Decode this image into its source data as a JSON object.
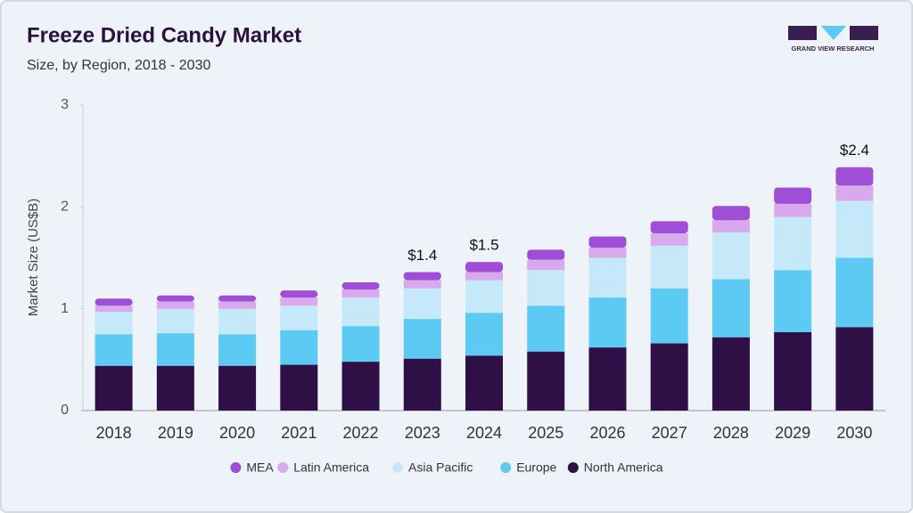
{
  "chart_data": {
    "type": "stacked-bar",
    "title": "Freeze Dried Candy Market",
    "subtitle": "Size, by Region, 2018 - 2030",
    "y_label": "Market Size (US$B)",
    "logo": "GRAND VIEW RESEARCH",
    "categories": [
      "2018",
      "2019",
      "2020",
      "2021",
      "2022",
      "2023",
      "2024",
      "2025",
      "2026",
      "2027",
      "2028",
      "2029",
      "2030"
    ],
    "series": [
      {
        "name": "North America",
        "color": "#2f1046",
        "values": [
          0.44,
          0.44,
          0.44,
          0.45,
          0.48,
          0.51,
          0.54,
          0.58,
          0.62,
          0.66,
          0.72,
          0.77,
          0.82
        ]
      },
      {
        "name": "Europe",
        "color": "#5ccaf2",
        "values": [
          0.31,
          0.32,
          0.31,
          0.34,
          0.35,
          0.39,
          0.42,
          0.45,
          0.49,
          0.54,
          0.57,
          0.61,
          0.68
        ]
      },
      {
        "name": "Asia Pacific",
        "color": "#c6e9f9",
        "values": [
          0.22,
          0.24,
          0.25,
          0.24,
          0.28,
          0.3,
          0.32,
          0.35,
          0.39,
          0.42,
          0.46,
          0.52,
          0.56
        ]
      },
      {
        "name": "Latin America",
        "color": "#d8a9ec",
        "values": [
          0.06,
          0.07,
          0.07,
          0.08,
          0.08,
          0.08,
          0.08,
          0.1,
          0.1,
          0.12,
          0.12,
          0.13,
          0.15
        ]
      },
      {
        "name": "MEA",
        "color": "#9f4fd7",
        "values": [
          0.07,
          0.06,
          0.06,
          0.07,
          0.07,
          0.08,
          0.1,
          0.1,
          0.11,
          0.12,
          0.14,
          0.16,
          0.18
        ]
      }
    ],
    "annotations": [
      {
        "category": "2023",
        "text": "$1.4",
        "value": 1.36
      },
      {
        "category": "2024",
        "text": "$1.5",
        "value": 1.46
      },
      {
        "category": "2030",
        "text": "$2.4",
        "value": 2.39
      }
    ],
    "ylim": [
      0,
      3
    ],
    "yticks": [
      0,
      1,
      2,
      3
    ],
    "grid": false
  }
}
